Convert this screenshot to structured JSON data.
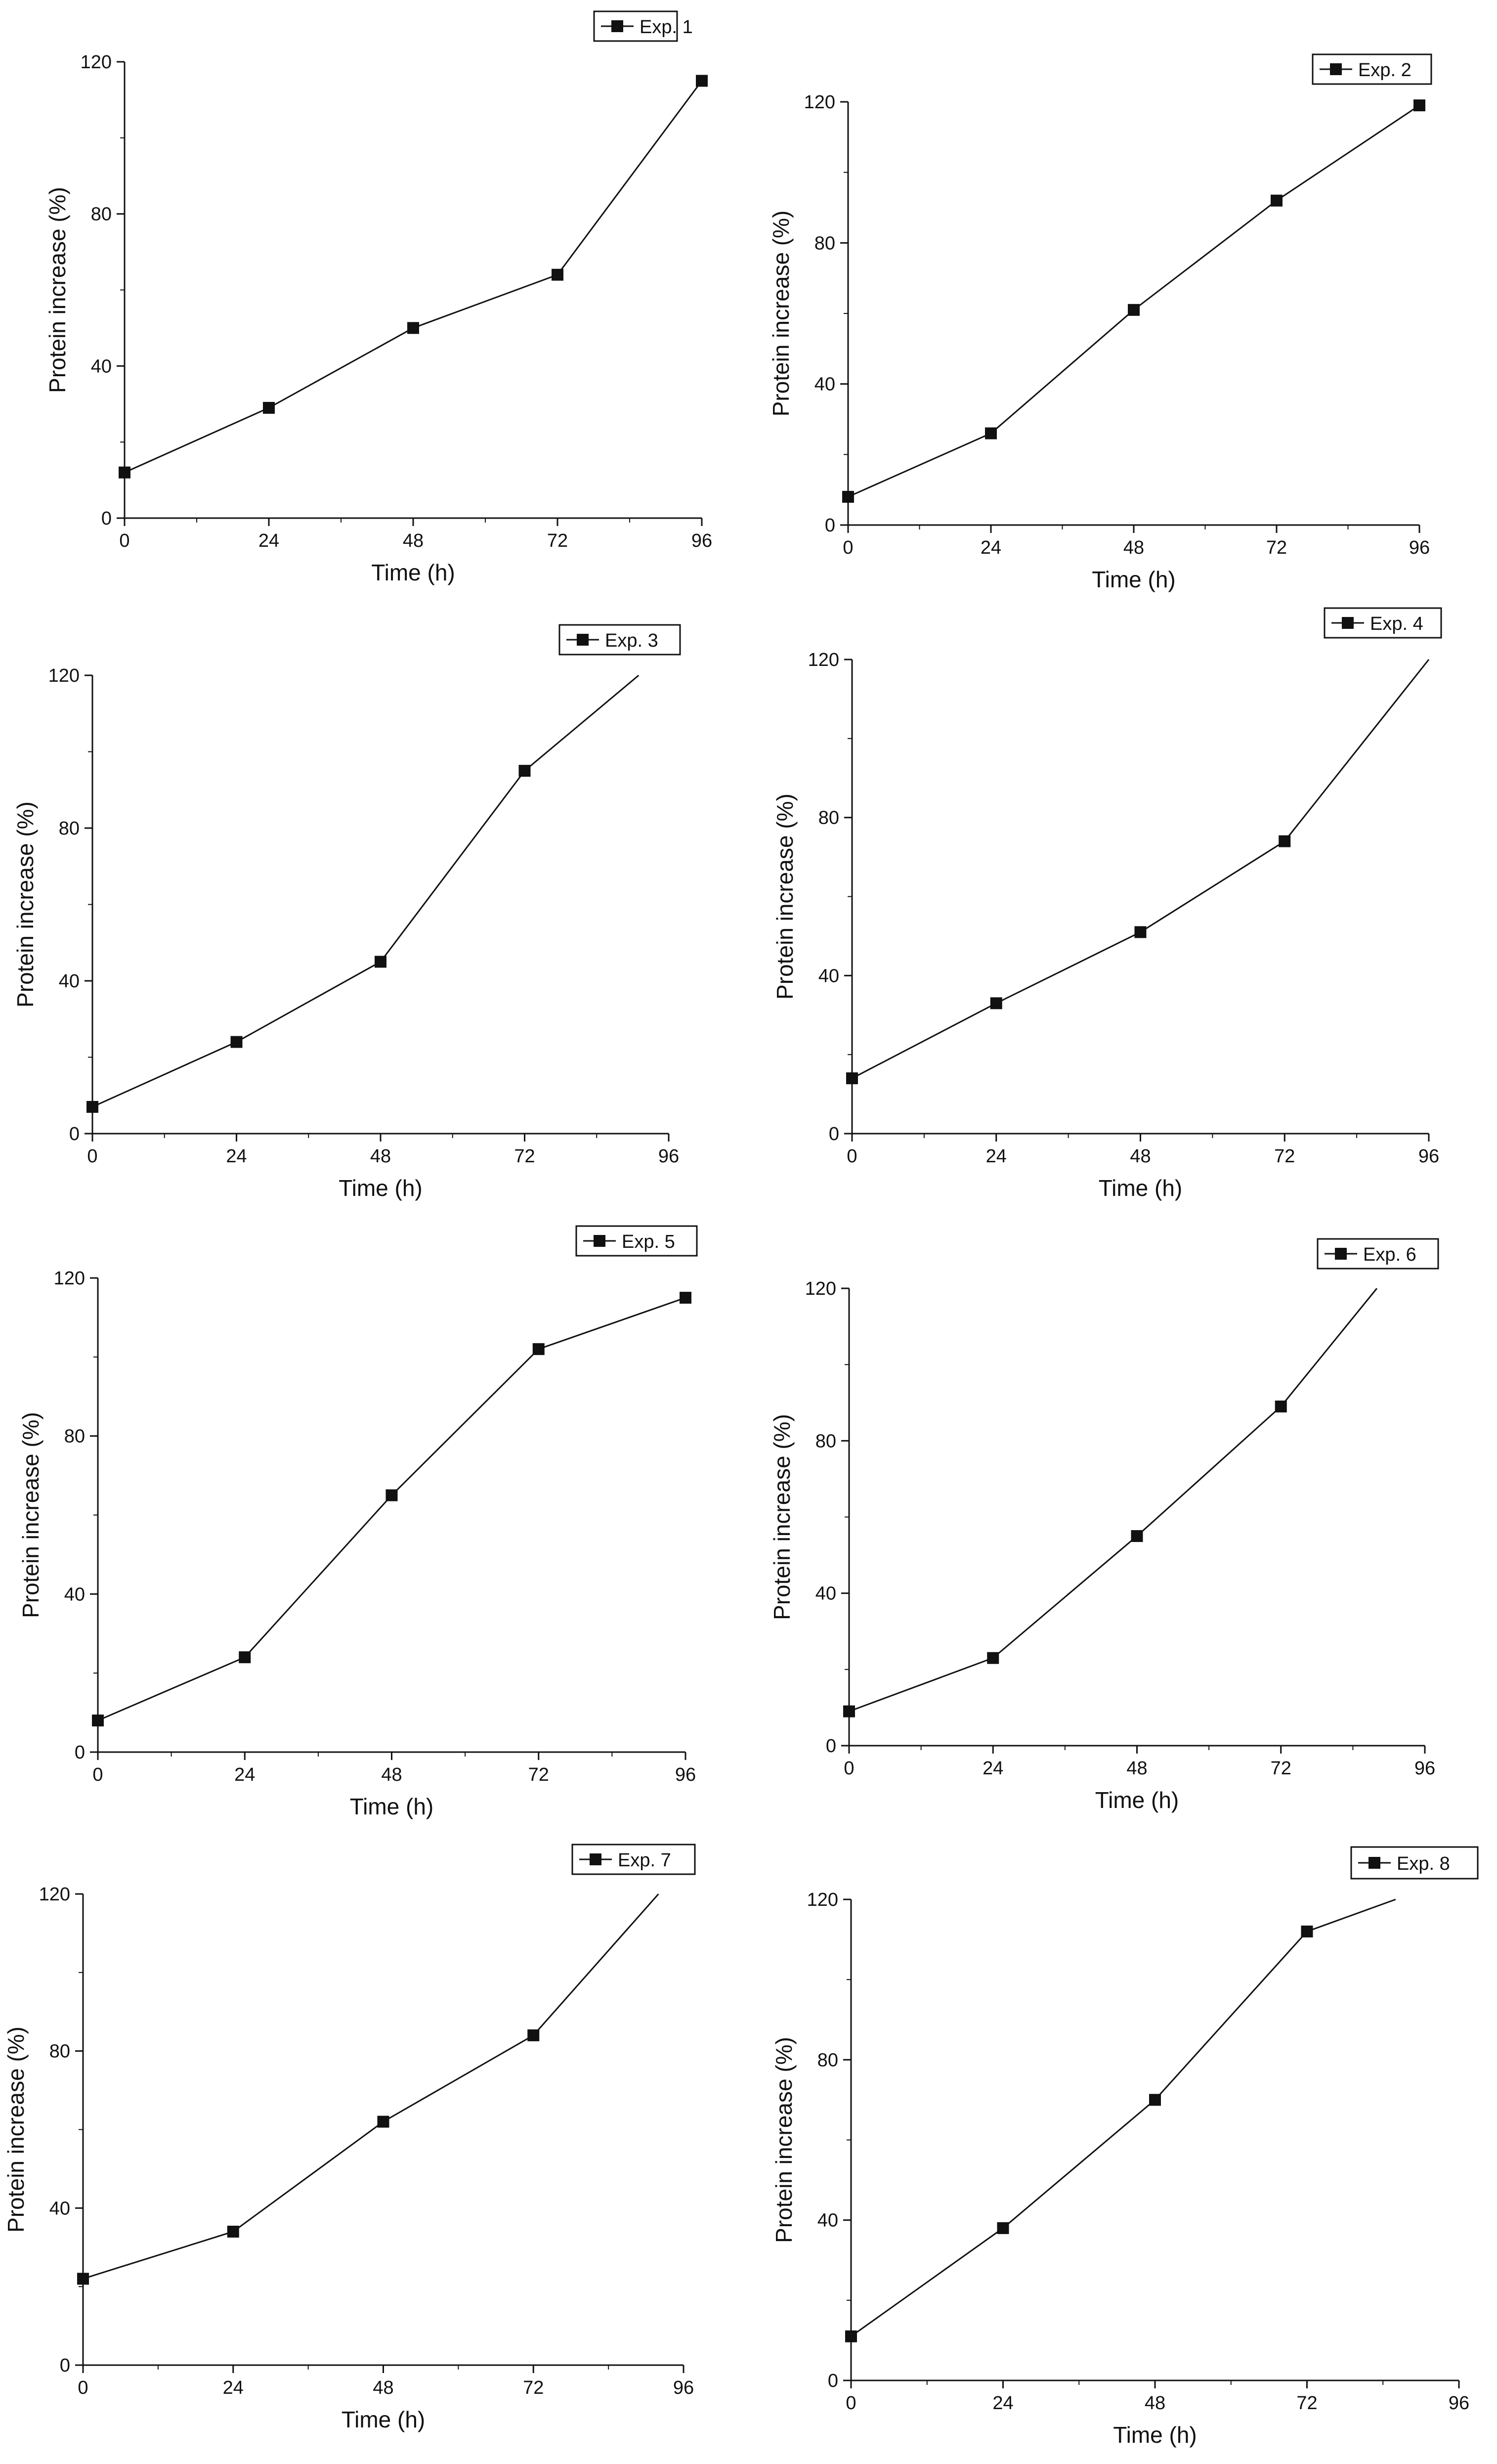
{
  "chart_data": [
    {
      "type": "line",
      "xlabel": "Time (h)",
      "ylabel": "Protein increase (%)",
      "xlim": [
        0,
        96
      ],
      "ylim": [
        0,
        120
      ],
      "xticks": [
        0,
        24,
        48,
        72,
        96
      ],
      "yticks": [
        0,
        40,
        80,
        120
      ],
      "legend_position": "top-right",
      "grid": false,
      "series": [
        {
          "name": "Exp. 1",
          "x": [
            0,
            24,
            48,
            72,
            96
          ],
          "y": [
            12,
            29,
            50,
            64,
            115
          ],
          "marker": "square"
        }
      ]
    },
    {
      "type": "line",
      "xlabel": "Time (h)",
      "ylabel": "Protein increase (%)",
      "xlim": [
        0,
        96
      ],
      "ylim": [
        0,
        120
      ],
      "xticks": [
        0,
        24,
        48,
        72,
        96
      ],
      "yticks": [
        0,
        40,
        80,
        120
      ],
      "legend_position": "top-right",
      "grid": false,
      "series": [
        {
          "name": "Exp. 2",
          "x": [
            0,
            24,
            48,
            72,
            96
          ],
          "y": [
            8,
            26,
            61,
            92,
            119
          ],
          "marker": "square"
        }
      ]
    },
    {
      "type": "line",
      "xlabel": "Time (h)",
      "ylabel": "Protein increase (%)",
      "xlim": [
        0,
        96
      ],
      "ylim": [
        0,
        120
      ],
      "xticks": [
        0,
        24,
        48,
        72,
        96
      ],
      "yticks": [
        0,
        40,
        80,
        120
      ],
      "legend_position": "top-right",
      "grid": false,
      "series": [
        {
          "name": "Exp. 3",
          "x": [
            0,
            24,
            48,
            72
          ],
          "y": [
            7,
            24,
            45,
            95
          ],
          "marker": "square",
          "line_end": [
            91,
            120
          ]
        }
      ]
    },
    {
      "type": "line",
      "xlabel": "Time (h)",
      "ylabel": "Protein increase (%)",
      "xlim": [
        0,
        96
      ],
      "ylim": [
        0,
        120
      ],
      "xticks": [
        0,
        24,
        48,
        72,
        96
      ],
      "yticks": [
        0,
        40,
        80,
        120
      ],
      "legend_position": "top-right",
      "grid": false,
      "series": [
        {
          "name": "Exp. 4",
          "x": [
            0,
            24,
            48,
            72
          ],
          "y": [
            14,
            33,
            51,
            74
          ],
          "marker": "square",
          "line_end": [
            96,
            120
          ]
        }
      ]
    },
    {
      "type": "line",
      "xlabel": "Time (h)",
      "ylabel": "Protein increase (%)",
      "xlim": [
        0,
        96
      ],
      "ylim": [
        0,
        120
      ],
      "xticks": [
        0,
        24,
        48,
        72,
        96
      ],
      "yticks": [
        0,
        40,
        80,
        120
      ],
      "legend_position": "top-right",
      "grid": false,
      "series": [
        {
          "name": "Exp. 5",
          "x": [
            0,
            24,
            48,
            72,
            96
          ],
          "y": [
            8,
            24,
            65,
            102,
            115
          ],
          "marker": "square"
        }
      ]
    },
    {
      "type": "line",
      "xlabel": "Time (h)",
      "ylabel": "Protein increase (%)",
      "xlim": [
        0,
        96
      ],
      "ylim": [
        0,
        120
      ],
      "xticks": [
        0,
        24,
        48,
        72,
        96
      ],
      "yticks": [
        0,
        40,
        80,
        120
      ],
      "legend_position": "top-right",
      "grid": false,
      "series": [
        {
          "name": "Exp. 6",
          "x": [
            0,
            24,
            48,
            72
          ],
          "y": [
            9,
            23,
            55,
            89
          ],
          "marker": "square",
          "line_end": [
            88,
            120
          ]
        }
      ]
    },
    {
      "type": "line",
      "xlabel": "Time (h)",
      "ylabel": "Protein increase (%)",
      "xlim": [
        0,
        96
      ],
      "ylim": [
        0,
        120
      ],
      "xticks": [
        0,
        24,
        48,
        72,
        96
      ],
      "yticks": [
        0,
        40,
        80,
        120
      ],
      "legend_position": "top-right",
      "grid": false,
      "series": [
        {
          "name": "Exp. 7",
          "x": [
            0,
            24,
            48,
            72
          ],
          "y": [
            22,
            34,
            62,
            84
          ],
          "marker": "square",
          "line_end": [
            92,
            120
          ]
        }
      ]
    },
    {
      "type": "line",
      "xlabel": "Time (h)",
      "ylabel": "Protein increase (%)",
      "xlim": [
        0,
        96
      ],
      "ylim": [
        0,
        120
      ],
      "xticks": [
        0,
        24,
        48,
        72,
        96
      ],
      "yticks": [
        0,
        40,
        80,
        120
      ],
      "legend_position": "top-right",
      "grid": false,
      "series": [
        {
          "name": "Exp. 8",
          "x": [
            0,
            24,
            48,
            72
          ],
          "y": [
            11,
            38,
            70,
            112
          ],
          "marker": "square",
          "line_end": [
            86,
            120
          ]
        }
      ]
    }
  ]
}
